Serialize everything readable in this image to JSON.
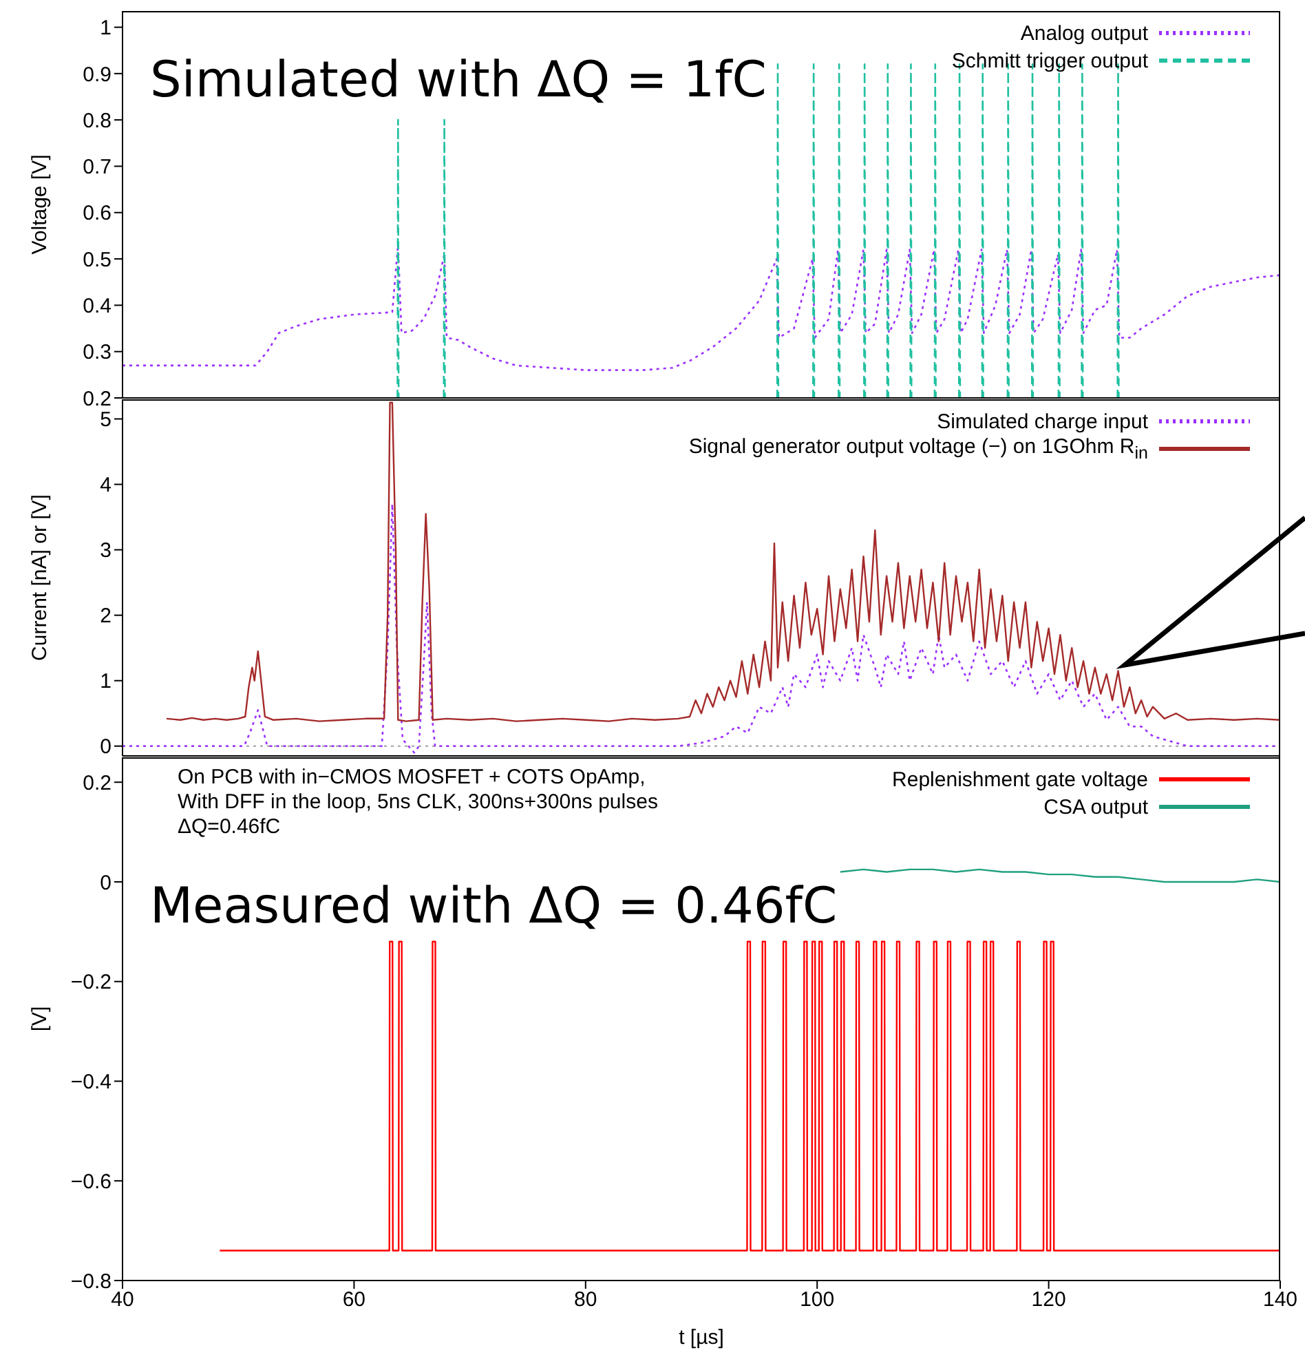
{
  "chart_data": [
    {
      "type": "line",
      "ylabel": "Voltage [V]",
      "annotations": [
        "Simulated with ΔQ = 1fC"
      ],
      "xlim": [
        40,
        140
      ],
      "xticks": [
        40,
        60,
        80,
        100,
        120,
        140
      ],
      "ylim": [
        0.2,
        1.035
      ],
      "yticks": [
        0.2,
        0.3,
        0.4,
        0.5,
        0.6,
        0.7,
        0.8,
        0.9,
        1
      ],
      "tick_labels": "y",
      "legend": "top right",
      "grid": false,
      "marker": "none",
      "series": [
        {
          "name": "Analog output",
          "color": "#9b30ff",
          "line_style": "dotted",
          "x": [
            40,
            51.5,
            52.5,
            53.5,
            55,
            57,
            60,
            63.3,
            63.8,
            64.1,
            65,
            66,
            67,
            67.8,
            68,
            69,
            70,
            72,
            74,
            77,
            80,
            85,
            87.5,
            89,
            91,
            93,
            95,
            96.5,
            96.7,
            98,
            99.6,
            99.8,
            101,
            101.8,
            102,
            103,
            104,
            104.2,
            105,
            106,
            106.2,
            107,
            108,
            108.2,
            109,
            110.1,
            110.3,
            111,
            112.2,
            112.4,
            113,
            114.2,
            114.4,
            115.4,
            116.4,
            116.6,
            117.5,
            118.5,
            118.7,
            119.5,
            120.8,
            121,
            122,
            122.8,
            123,
            124,
            125,
            125.9,
            126.1,
            127,
            128,
            130,
            132,
            134,
            136,
            138,
            140
          ],
          "values": [
            0.27,
            0.27,
            0.3,
            0.34,
            0.355,
            0.37,
            0.38,
            0.385,
            0.53,
            0.34,
            0.345,
            0.37,
            0.42,
            0.51,
            0.33,
            0.325,
            0.31,
            0.285,
            0.27,
            0.265,
            0.26,
            0.26,
            0.265,
            0.28,
            0.31,
            0.35,
            0.41,
            0.5,
            0.33,
            0.35,
            0.5,
            0.33,
            0.37,
            0.52,
            0.34,
            0.38,
            0.52,
            0.34,
            0.36,
            0.52,
            0.34,
            0.38,
            0.52,
            0.34,
            0.38,
            0.52,
            0.34,
            0.37,
            0.52,
            0.34,
            0.37,
            0.52,
            0.34,
            0.4,
            0.52,
            0.34,
            0.38,
            0.52,
            0.34,
            0.37,
            0.51,
            0.34,
            0.39,
            0.52,
            0.34,
            0.39,
            0.4,
            0.52,
            0.33,
            0.33,
            0.35,
            0.38,
            0.42,
            0.44,
            0.45,
            0.46,
            0.465
          ]
        },
        {
          "name": "Schmitt trigger output",
          "color": "#20c0a0",
          "line_style": "dashed",
          "x": [
            63.75,
            63.8,
            63.85,
            63.9,
            67.75,
            67.8,
            67.85,
            67.9,
            96.55,
            96.6,
            96.65,
            96.7,
            99.65,
            99.7,
            99.75,
            99.8,
            101.85,
            101.9,
            101.95,
            102,
            104.05,
            104.1,
            104.15,
            104.2,
            106.05,
            106.1,
            106.15,
            106.2,
            108.05,
            108.1,
            108.15,
            108.2,
            110.15,
            110.2,
            110.25,
            110.3,
            112.25,
            112.3,
            112.35,
            112.4,
            114.25,
            114.3,
            114.35,
            114.4,
            116.45,
            116.5,
            116.55,
            116.6,
            118.55,
            118.6,
            118.65,
            118.7,
            120.85,
            120.9,
            120.95,
            121,
            122.85,
            122.9,
            122.95,
            123,
            125.95,
            126,
            126.05
          ],
          "values": [
            0.2,
            0.8,
            0.2,
            null,
            0.2,
            0.8,
            0.2,
            null,
            0.2,
            0.92,
            0.2,
            null,
            0.2,
            0.92,
            0.2,
            null,
            0.2,
            0.92,
            0.2,
            null,
            0.2,
            0.92,
            0.2,
            null,
            0.2,
            0.92,
            0.2,
            null,
            0.2,
            0.92,
            0.2,
            null,
            0.2,
            0.92,
            0.2,
            null,
            0.2,
            0.92,
            0.2,
            null,
            0.2,
            0.92,
            0.2,
            null,
            0.2,
            0.92,
            0.2,
            null,
            0.2,
            0.92,
            0.2,
            null,
            0.2,
            0.92,
            0.2,
            null,
            0.2,
            0.92,
            0.2,
            null,
            0.2,
            0.92,
            0.2
          ]
        }
      ]
    },
    {
      "type": "line",
      "ylabel": "Current [nA] or [V]",
      "xlim": [
        40,
        140
      ],
      "xticks": [
        40,
        60,
        80,
        100,
        120,
        140
      ],
      "ylim": [
        -0.15,
        5.3
      ],
      "yticks": [
        0,
        1,
        2,
        3,
        4,
        5
      ],
      "tick_labels": "y",
      "legend": "top right",
      "grid": false,
      "marker": "none",
      "ref_lines": [
        {
          "axis": "y",
          "value": 0,
          "color": "#a0a0a0",
          "line_style": "dotted"
        }
      ],
      "series": [
        {
          "name": "Simulated charge input",
          "color": "#9b30ff",
          "line_style": "dotted",
          "x": [
            40,
            50.5,
            51,
            51.7,
            52.5,
            62.4,
            62.9,
            63.3,
            63.7,
            64.2,
            65.2,
            65.6,
            66,
            66.3,
            66.7,
            67,
            88,
            90,
            92,
            93,
            94,
            95,
            96,
            97,
            97.5,
            98,
            99,
            100,
            100.5,
            101,
            102,
            103,
            103.5,
            104,
            105,
            105.5,
            106,
            107,
            107.5,
            108,
            109,
            110,
            110.5,
            111,
            112,
            113,
            114,
            115,
            116,
            117,
            118,
            119,
            120,
            121,
            122,
            123,
            124,
            125,
            126,
            127,
            128,
            129,
            130,
            131,
            132,
            140
          ],
          "values": [
            0,
            0,
            0.2,
            0.55,
            0,
            0,
            1.5,
            3.7,
            1.5,
            0.1,
            -0.1,
            0,
            1.2,
            2.2,
            0.5,
            0,
            0,
            0.05,
            0.15,
            0.3,
            0.2,
            0.6,
            0.5,
            0.9,
            0.6,
            1.1,
            0.9,
            1.4,
            0.9,
            1.3,
            1,
            1.5,
            1,
            1.7,
            1.2,
            0.9,
            1.4,
            1.1,
            1.6,
            1,
            1.5,
            1.1,
            1.7,
            1.2,
            1.4,
            1,
            1.6,
            1.1,
            1.3,
            0.9,
            1.3,
            0.8,
            1.1,
            0.7,
            1,
            0.6,
            0.8,
            0.4,
            0.6,
            0.3,
            0.3,
            0.15,
            0.1,
            0.05,
            0,
            0
          ]
        },
        {
          "name": "Signal generator output voltage (−) on 1GOhm R$_{in}$",
          "color": "#a52a2a",
          "line_style": "solid",
          "x": [
            43.8,
            45,
            46,
            47,
            48,
            49,
            50,
            50.6,
            50.9,
            51.2,
            51.4,
            51.7,
            52,
            52.3,
            53,
            55,
            57,
            59,
            61,
            62.6,
            62.9,
            63.1,
            63.3,
            63.6,
            63.8,
            64.5,
            65.6,
            65.9,
            66.2,
            66.5,
            66.8,
            68,
            70,
            72,
            74,
            76,
            78,
            80,
            82,
            84,
            86,
            88,
            89,
            89.5,
            90,
            90.5,
            91,
            91.5,
            92,
            92.5,
            93,
            93.5,
            94,
            94.5,
            95,
            95.5,
            96,
            96.3,
            96.6,
            97,
            97.5,
            98,
            98.5,
            99,
            99.5,
            100,
            100.5,
            101,
            101.5,
            102,
            102.5,
            103,
            103.5,
            104,
            104.5,
            105,
            105.5,
            106,
            106.5,
            107,
            107.5,
            108,
            108.5,
            109,
            109.5,
            110,
            110.5,
            111,
            111.5,
            112,
            112.5,
            113,
            113.5,
            114,
            114.5,
            115,
            115.5,
            116,
            116.5,
            117,
            117.5,
            118,
            118.5,
            119,
            119.5,
            120,
            120.5,
            121,
            121.5,
            122,
            122.5,
            123,
            123.5,
            124,
            124.5,
            125,
            125.5,
            126,
            126.5,
            127,
            127.5,
            128,
            128.5,
            129,
            130,
            131,
            132,
            134,
            136,
            138,
            140
          ],
          "values": [
            0.42,
            0.4,
            0.43,
            0.4,
            0.42,
            0.4,
            0.42,
            0.45,
            0.9,
            1.2,
            1,
            1.45,
            0.95,
            0.45,
            0.4,
            0.42,
            0.38,
            0.4,
            0.42,
            0.42,
            2,
            5.25,
            5.25,
            3,
            0.4,
            0.38,
            0.4,
            2.2,
            3.55,
            2.4,
            0.4,
            0.42,
            0.4,
            0.42,
            0.38,
            0.4,
            0.42,
            0.4,
            0.38,
            0.42,
            0.4,
            0.42,
            0.45,
            0.7,
            0.5,
            0.8,
            0.6,
            0.9,
            0.7,
            1,
            0.75,
            1.3,
            0.8,
            1.4,
            0.9,
            1.6,
            1,
            3.1,
            1.2,
            2.2,
            1.3,
            2.3,
            1.5,
            2.5,
            1.7,
            2.1,
            1.4,
            2.6,
            1.6,
            2.4,
            1.8,
            2.7,
            1.6,
            2.9,
            1.9,
            3.3,
            1.7,
            2.6,
            1.9,
            2.8,
            1.8,
            2.6,
            1.9,
            2.7,
            1.8,
            2.5,
            1.6,
            2.8,
            1.7,
            2.6,
            1.9,
            2.5,
            1.6,
            2.7,
            1.5,
            2.4,
            1.6,
            2.3,
            1.3,
            2.2,
            1.5,
            2.2,
            1.2,
            1.9,
            1.3,
            1.8,
            1.1,
            1.7,
            1,
            1.5,
            0.9,
            1.3,
            0.8,
            1.2,
            0.8,
            1.1,
            0.7,
            1.15,
            0.6,
            0.9,
            0.5,
            0.7,
            0.45,
            0.6,
            0.42,
            0.5,
            0.4,
            0.42,
            0.4,
            0.42,
            0.4
          ]
        }
      ]
    },
    {
      "type": "line",
      "ylabel": "[V]",
      "xlabel": "t [µs]",
      "annotations": [
        "On PCB with in−CMOS MOSFET + COTS OpAmp,\nWith DFF in the loop, 5ns CLK, 300ns+300ns pulses\nΔQ=0.46fC",
        "Measured with ΔQ = 0.46fC"
      ],
      "xlim": [
        40,
        140
      ],
      "xticks": [
        40,
        60,
        80,
        100,
        120,
        140
      ],
      "ylim": [
        -0.8,
        0.25
      ],
      "yticks": [
        -0.8,
        -0.6,
        -0.4,
        -0.2,
        0,
        0.2
      ],
      "legend": "top right",
      "grid": false,
      "marker": "none",
      "series": [
        {
          "name": "Replenishment gate voltage",
          "color": "#ff0000",
          "line_style": "solid",
          "x": [
            48.4,
            55,
            63.05,
            63.08,
            63.32,
            63.35,
            63.85,
            63.88,
            64.12,
            64.15,
            66.75,
            66.78,
            67.02,
            67.05,
            80,
            93.95,
            93.98,
            94.22,
            94.25,
            95.25,
            95.28,
            95.52,
            95.55,
            97.05,
            97.08,
            97.32,
            97.35,
            98.85,
            98.88,
            99.12,
            99.15,
            99.55,
            99.58,
            99.82,
            99.85,
            100.15,
            100.18,
            100.42,
            100.45,
            101.45,
            101.48,
            101.72,
            101.75,
            102.05,
            102.08,
            102.32,
            102.35,
            103.35,
            103.38,
            103.62,
            103.65,
            104.85,
            104.88,
            105.12,
            105.15,
            105.55,
            105.58,
            105.82,
            105.85,
            106.85,
            106.88,
            107.12,
            107.15,
            108.55,
            108.58,
            108.82,
            108.85,
            110.05,
            110.08,
            110.32,
            110.35,
            111.25,
            111.28,
            111.52,
            111.55,
            112.95,
            112.98,
            113.22,
            113.25,
            114.35,
            114.38,
            114.62,
            114.65,
            114.95,
            114.98,
            115.22,
            115.25,
            117.25,
            117.28,
            117.52,
            117.55,
            119.55,
            119.58,
            119.82,
            119.85,
            120.15,
            120.18,
            120.42,
            120.45,
            130,
            140
          ],
          "values": [
            -0.74,
            -0.74,
            -0.74,
            -0.12,
            -0.12,
            -0.74,
            -0.74,
            -0.12,
            -0.12,
            -0.74,
            -0.74,
            -0.12,
            -0.12,
            -0.74,
            -0.74,
            -0.74,
            -0.12,
            -0.12,
            -0.74,
            -0.74,
            -0.12,
            -0.12,
            -0.74,
            -0.74,
            -0.12,
            -0.12,
            -0.74,
            -0.74,
            -0.12,
            -0.12,
            -0.74,
            -0.74,
            -0.12,
            -0.12,
            -0.74,
            -0.74,
            -0.12,
            -0.12,
            -0.74,
            -0.74,
            -0.12,
            -0.12,
            -0.74,
            -0.74,
            -0.12,
            -0.12,
            -0.74,
            -0.74,
            -0.12,
            -0.12,
            -0.74,
            -0.74,
            -0.12,
            -0.12,
            -0.74,
            -0.74,
            -0.12,
            -0.12,
            -0.74,
            -0.74,
            -0.12,
            -0.12,
            -0.74,
            -0.74,
            -0.12,
            -0.12,
            -0.74,
            -0.74,
            -0.12,
            -0.12,
            -0.74,
            -0.74,
            -0.12,
            -0.12,
            -0.74,
            -0.74,
            -0.12,
            -0.12,
            -0.74,
            -0.74,
            -0.12,
            -0.12,
            -0.74,
            -0.74,
            -0.12,
            -0.12,
            -0.74,
            -0.74,
            -0.12,
            -0.12,
            -0.74,
            -0.74,
            -0.12,
            -0.12,
            -0.74,
            -0.74,
            -0.12,
            -0.12,
            -0.74,
            -0.74,
            -0.74
          ]
        },
        {
          "name": "CSA output",
          "color": "#20a080",
          "line_style": "solid",
          "x": [
            102,
            104,
            106,
            108,
            110,
            112,
            114,
            116,
            118,
            120,
            122,
            124,
            126,
            128,
            130,
            132,
            134,
            136,
            138,
            140
          ],
          "values": [
            0.02,
            0.025,
            0.02,
            0.025,
            0.025,
            0.02,
            0.025,
            0.02,
            0.02,
            0.015,
            0.015,
            0.01,
            0.01,
            0.005,
            0.0,
            0.0,
            0.0,
            0.0,
            0.005,
            0.0
          ]
        }
      ]
    }
  ]
}
